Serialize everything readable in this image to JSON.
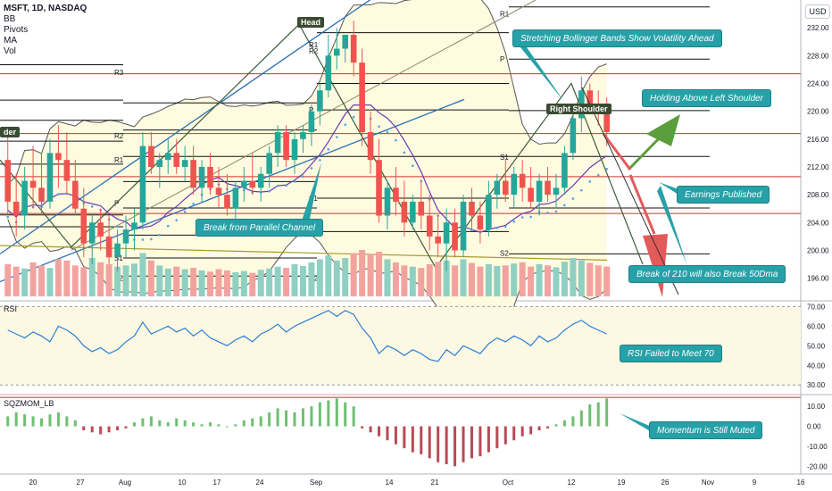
{
  "header": {
    "symbol": "MSFT, 1D, NASDAQ",
    "indicators": [
      "BB",
      "Pivots",
      "MA",
      "Vol"
    ],
    "currency_button": "USD"
  },
  "colors": {
    "bull": "#26a69a",
    "bear": "#ef5350",
    "bb_band": "#555555",
    "bb_fill": "#fffbe0",
    "ma": "#6a3ab2",
    "psar": "#4fa3e0",
    "annotation": "#26a1a7",
    "rsi": "#2a7fd4",
    "trend_blue": "#2a6fb4",
    "trend_olive": "#a59a2a",
    "red_level": "#d32f2f",
    "arrow_green": "#5a9e3c",
    "arrow_red": "#e35a5a"
  },
  "panes": {
    "rsi_label": "RSI",
    "momentum_label": "SQZMOM_LB"
  },
  "annotations": [
    {
      "id": "stretching",
      "text": "Stretching Bollinger Bands Show Volatility Ahead"
    },
    {
      "id": "holding",
      "text": "Holding Above Left Shoulder"
    },
    {
      "id": "earnings",
      "text": "Earnings Published"
    },
    {
      "id": "break-channel",
      "text": "Break from Parallel Channel"
    },
    {
      "id": "break-210",
      "text": "Break of 210 will also Break 50Dma"
    },
    {
      "id": "rsi-failed",
      "text": "RSI Failed to Meet 70"
    },
    {
      "id": "momentum",
      "text": "Momentum is Still Muted"
    }
  ],
  "pattern_labels": {
    "head": "Head",
    "right_shoulder": "Right Shoulder",
    "left_shoulder_partial": "der"
  },
  "chart_data": {
    "type": "candlestick",
    "x_axis": {
      "tick_labels": [
        "20",
        "27",
        "Aug",
        "10",
        "17",
        "24",
        "Sep",
        "14",
        "21",
        "Oct",
        "12",
        "19",
        "26",
        "Nov",
        "9",
        "16"
      ]
    },
    "price_axis": {
      "ticks": [
        "232.00",
        "228.00",
        "224.00",
        "220.00",
        "216.00",
        "212.00",
        "208.00",
        "204.00",
        "200.00",
        "196.00"
      ],
      "range": [
        193,
        236
      ]
    },
    "rsi_axis": {
      "ticks": [
        "70.00",
        "60.00",
        "50.00",
        "40.00",
        "30.00"
      ],
      "range": [
        26,
        72
      ],
      "band": [
        30,
        70
      ]
    },
    "momentum_axis": {
      "ticks": [
        "10.00",
        "0.00",
        "-10.00",
        "-20.00"
      ],
      "range": [
        -23,
        15
      ]
    },
    "candles": [
      [
        213,
        217,
        205,
        207
      ],
      [
        207,
        211,
        202,
        205
      ],
      [
        205,
        212,
        203,
        210
      ],
      [
        210,
        215,
        206,
        209
      ],
      [
        209,
        214,
        205,
        207
      ],
      [
        207,
        216,
        206,
        214
      ],
      [
        214,
        218,
        209,
        213
      ],
      [
        213,
        217,
        208,
        210
      ],
      [
        210,
        213,
        205,
        206
      ],
      [
        206,
        209,
        199,
        201
      ],
      [
        201,
        205,
        198,
        204
      ],
      [
        204,
        206,
        200,
        202
      ],
      [
        202,
        205,
        198,
        199
      ],
      [
        199,
        203,
        197,
        201
      ],
      [
        201,
        205,
        199,
        203
      ],
      [
        203,
        206,
        200,
        204
      ],
      [
        204,
        217,
        203,
        215
      ],
      [
        215,
        217,
        211,
        212
      ],
      [
        212,
        214,
        209,
        213
      ],
      [
        213,
        216,
        211,
        214
      ],
      [
        214,
        216,
        211,
        212
      ],
      [
        212,
        215,
        210,
        213
      ],
      [
        213,
        215,
        208,
        209
      ],
      [
        209,
        213,
        207,
        212
      ],
      [
        212,
        214,
        208,
        209
      ],
      [
        209,
        212,
        206,
        208
      ],
      [
        208,
        211,
        205,
        206
      ],
      [
        206,
        210,
        204,
        209
      ],
      [
        209,
        212,
        207,
        210
      ],
      [
        210,
        214,
        208,
        209
      ],
      [
        209,
        212,
        207,
        211
      ],
      [
        211,
        215,
        209,
        214
      ],
      [
        214,
        218,
        212,
        217
      ],
      [
        217,
        218,
        212,
        213
      ],
      [
        213,
        217,
        211,
        216
      ],
      [
        216,
        218,
        214,
        217
      ],
      [
        217,
        221,
        215,
        220
      ],
      [
        220,
        224,
        218,
        223
      ],
      [
        223,
        231,
        222,
        228
      ],
      [
        228,
        232,
        226,
        229
      ],
      [
        229,
        231,
        227,
        231
      ],
      [
        231,
        233,
        225,
        227
      ],
      [
        227,
        229,
        215,
        217
      ],
      [
        217,
        220,
        211,
        213
      ],
      [
        213,
        216,
        204,
        205
      ],
      [
        205,
        210,
        203,
        209
      ],
      [
        209,
        212,
        205,
        207
      ],
      [
        207,
        210,
        202,
        204
      ],
      [
        204,
        208,
        203,
        207
      ],
      [
        207,
        210,
        203,
        205
      ],
      [
        205,
        208,
        200,
        202
      ],
      [
        202,
        205,
        199,
        201
      ],
      [
        201,
        206,
        197,
        204
      ],
      [
        204,
        206,
        199,
        200
      ],
      [
        200,
        208,
        199,
        207
      ],
      [
        207,
        209,
        203,
        205
      ],
      [
        205,
        207,
        201,
        203
      ],
      [
        203,
        210,
        202,
        208
      ],
      [
        208,
        211,
        206,
        210
      ],
      [
        210,
        213,
        207,
        208
      ],
      [
        208,
        212,
        206,
        211
      ],
      [
        211,
        213,
        207,
        209
      ],
      [
        209,
        212,
        206,
        207
      ],
      [
        207,
        211,
        205,
        210
      ],
      [
        210,
        212,
        207,
        208
      ],
      [
        208,
        211,
        206,
        209
      ],
      [
        209,
        215,
        208,
        214
      ],
      [
        214,
        220,
        213,
        219
      ],
      [
        219,
        225,
        217,
        223
      ],
      [
        223,
        224,
        220,
        221
      ],
      [
        221,
        223,
        218,
        220
      ],
      [
        220,
        222,
        215,
        217
      ]
    ],
    "volume": [
      52,
      48,
      45,
      55,
      50,
      46,
      60,
      58,
      50,
      47,
      62,
      55,
      52,
      48,
      50,
      53,
      70,
      58,
      50,
      45,
      48,
      44,
      46,
      42,
      40,
      44,
      42,
      39,
      41,
      38,
      43,
      45,
      48,
      46,
      52,
      49,
      55,
      60,
      66,
      58,
      62,
      70,
      75,
      68,
      72,
      60,
      55,
      50,
      48,
      46,
      52,
      56,
      58,
      50,
      60,
      54,
      48,
      52,
      49,
      50,
      53,
      55,
      48,
      52,
      50,
      47,
      56,
      62,
      58,
      54,
      50,
      48
    ],
    "rsi": [
      58,
      56,
      54,
      57,
      55,
      52,
      60,
      58,
      55,
      50,
      47,
      49,
      46,
      48,
      52,
      55,
      62,
      56,
      58,
      60,
      57,
      59,
      55,
      58,
      54,
      52,
      50,
      53,
      55,
      52,
      56,
      58,
      61,
      57,
      60,
      62,
      64,
      66,
      68,
      65,
      68,
      66,
      59,
      54,
      46,
      50,
      48,
      45,
      48,
      46,
      43,
      42,
      48,
      45,
      50,
      48,
      46,
      51,
      54,
      52,
      55,
      53,
      50,
      55,
      52,
      54,
      58,
      61,
      63,
      60,
      58,
      56
    ],
    "momentum": [
      5,
      7,
      6,
      5,
      4,
      6,
      7,
      5,
      3,
      -2,
      -3,
      -4,
      -3,
      -2,
      -1,
      2,
      4,
      5,
      3,
      2,
      4,
      3,
      2,
      1,
      2,
      1,
      0,
      1,
      3,
      4,
      5,
      7,
      9,
      8,
      7,
      9,
      10,
      12,
      13,
      14,
      12,
      10,
      -1,
      -3,
      -5,
      -7,
      -9,
      -11,
      -13,
      -14,
      -16,
      -18,
      -19,
      -20,
      -18,
      -16,
      -15,
      -13,
      -11,
      -9,
      -7,
      -5,
      -4,
      -2,
      -1,
      1,
      3,
      5,
      8,
      11,
      12,
      14
    ],
    "pivot_labels": [
      "R3",
      "R2",
      "R1",
      "P",
      "S1",
      "S2",
      "R2",
      "R1",
      "P",
      "S1",
      "S2",
      "R2",
      "R1",
      "P",
      "S1",
      "S2"
    ]
  }
}
